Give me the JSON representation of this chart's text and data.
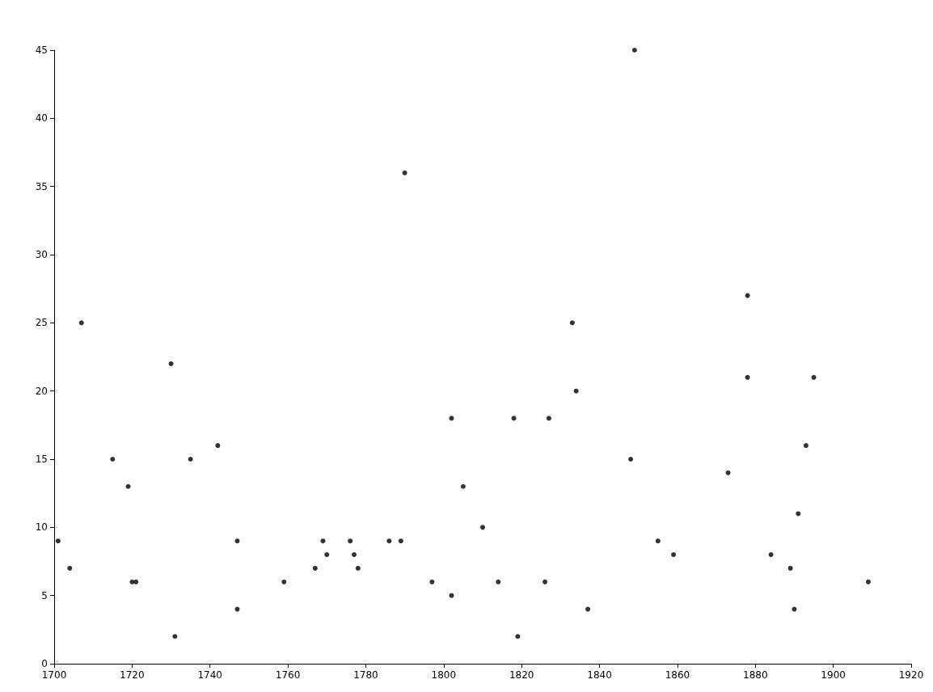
{
  "chart_data": {
    "type": "scatter",
    "x": [
      1701,
      1704,
      1707,
      1715,
      1719,
      1720,
      1721,
      1730,
      1731,
      1735,
      1742,
      1747,
      1747,
      1759,
      1767,
      1769,
      1770,
      1776,
      1777,
      1778,
      1786,
      1789,
      1790,
      1797,
      1802,
      1802,
      1805,
      1810,
      1814,
      1818,
      1819,
      1826,
      1827,
      1833,
      1834,
      1837,
      1848,
      1849,
      1855,
      1859,
      1873,
      1878,
      1878,
      1884,
      1889,
      1890,
      1891,
      1893,
      1895,
      1909
    ],
    "values": [
      9,
      7,
      25,
      15,
      13,
      6,
      6,
      22,
      2,
      15,
      16,
      9,
      4,
      6,
      7,
      9,
      8,
      9,
      8,
      7,
      9,
      9,
      36,
      6,
      18,
      5,
      13,
      10,
      6,
      18,
      2,
      6,
      18,
      25,
      20,
      4,
      15,
      45,
      9,
      8,
      14,
      27,
      21,
      8,
      7,
      4,
      11,
      16,
      21,
      6
    ],
    "color": "#000000",
    "marker": "circle",
    "xlim": [
      1700,
      1920
    ],
    "xticks": [
      1700,
      1720,
      1740,
      1760,
      1780,
      1800,
      1820,
      1840,
      1860,
      1880,
      1900,
      1920
    ],
    "ylim": [
      0,
      45
    ],
    "yticks": [
      0,
      5,
      10,
      15,
      20,
      25,
      30,
      35,
      40,
      45
    ],
    "grid": false
  }
}
